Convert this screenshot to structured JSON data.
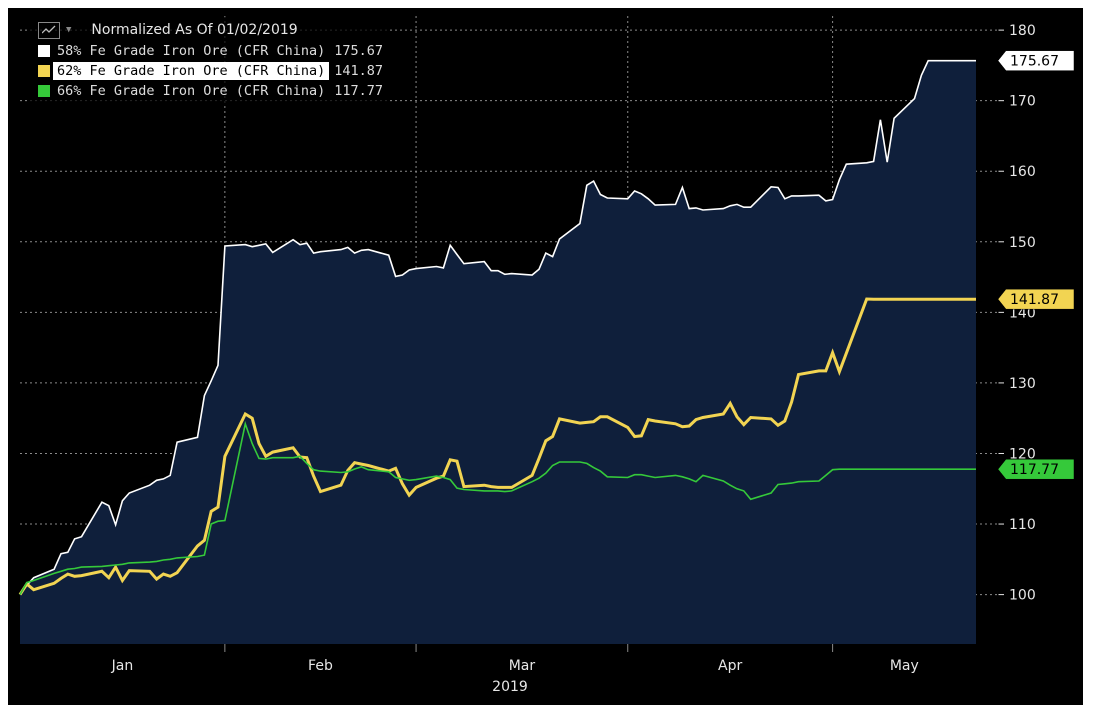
{
  "legend": {
    "title": "Normalized As Of 01/02/2019",
    "chart_icon": "line-chart-icon",
    "dropdown_icon": "caret-down-icon",
    "items": [
      {
        "label": "58% Fe Grade Iron Ore (CFR China)",
        "value": "175.67",
        "color": "#ffffff"
      },
      {
        "label": "62% Fe Grade Iron Ore (CFR China)",
        "value": "141.87",
        "color": "#f2d452"
      },
      {
        "label": "66% Fe Grade Iron Ore (CFR China)",
        "value": "117.77",
        "color": "#35c93a"
      }
    ]
  },
  "colors": {
    "background": "#000000",
    "area_fill": "#0f1f3b",
    "grid": "#8a8a8a",
    "tick_text": "#e6e6e6"
  },
  "chart_data": {
    "type": "line",
    "title": "Normalized As Of 01/02/2019",
    "xlabel": "2019",
    "ylabel": "",
    "x_tick_labels": [
      "Jan",
      "Feb",
      "Mar",
      "Apr",
      "May"
    ],
    "y_ticks": [
      100,
      110,
      120,
      130,
      140,
      150,
      160,
      170,
      180
    ],
    "ylim": [
      93,
      182
    ],
    "grid": true,
    "legend_position": "top-left",
    "x": [
      "2019-01-02",
      "2019-01-03",
      "2019-01-04",
      "2019-01-07",
      "2019-01-08",
      "2019-01-09",
      "2019-01-10",
      "2019-01-11",
      "2019-01-14",
      "2019-01-15",
      "2019-01-16",
      "2019-01-17",
      "2019-01-18",
      "2019-01-21",
      "2019-01-22",
      "2019-01-23",
      "2019-01-24",
      "2019-01-25",
      "2019-01-28",
      "2019-01-29",
      "2019-01-30",
      "2019-01-31",
      "2019-02-01",
      "2019-02-04",
      "2019-02-05",
      "2019-02-06",
      "2019-02-07",
      "2019-02-08",
      "2019-02-11",
      "2019-02-12",
      "2019-02-13",
      "2019-02-14",
      "2019-02-15",
      "2019-02-18",
      "2019-02-19",
      "2019-02-20",
      "2019-02-21",
      "2019-02-22",
      "2019-02-25",
      "2019-02-26",
      "2019-02-27",
      "2019-02-28",
      "2019-03-01",
      "2019-03-04",
      "2019-03-05",
      "2019-03-06",
      "2019-03-07",
      "2019-03-08",
      "2019-03-11",
      "2019-03-12",
      "2019-03-13",
      "2019-03-14",
      "2019-03-15",
      "2019-03-18",
      "2019-03-19",
      "2019-03-20",
      "2019-03-21",
      "2019-03-22",
      "2019-03-25",
      "2019-03-26",
      "2019-03-27",
      "2019-03-28",
      "2019-03-29",
      "2019-04-01",
      "2019-04-02",
      "2019-04-03",
      "2019-04-04",
      "2019-04-05",
      "2019-04-08",
      "2019-04-09",
      "2019-04-10",
      "2019-04-11",
      "2019-04-12",
      "2019-04-15",
      "2019-04-16",
      "2019-04-17",
      "2019-04-18",
      "2019-04-19",
      "2019-04-22",
      "2019-04-23",
      "2019-04-24",
      "2019-04-25",
      "2019-04-26",
      "2019-04-29",
      "2019-04-30",
      "2019-05-01",
      "2019-05-02",
      "2019-05-03",
      "2019-05-06",
      "2019-05-07",
      "2019-05-08",
      "2019-05-09",
      "2019-05-10",
      "2019-05-13",
      "2019-05-14",
      "2019-05-15",
      "2019-05-16",
      "2019-05-17",
      "2019-05-20",
      "2019-05-21",
      "2019-05-22"
    ],
    "series": [
      {
        "name": "58% Fe Grade Iron Ore (CFR China)",
        "color": "#ffffff",
        "last_value": 175.67,
        "values": [
          100.0,
          101.3,
          102.4,
          103.6,
          105.8,
          106.0,
          107.9,
          108.2,
          113.1,
          112.6,
          109.9,
          113.3,
          114.4,
          115.5,
          116.2,
          116.4,
          116.9,
          121.6,
          122.3,
          128.2,
          130.3,
          132.5,
          149.4,
          149.6,
          149.3,
          149.5,
          149.7,
          148.5,
          150.3,
          149.6,
          149.8,
          148.4,
          148.6,
          148.9,
          149.2,
          148.4,
          148.8,
          148.9,
          148.1,
          145.1,
          145.3,
          146.0,
          146.2,
          146.5,
          146.3,
          149.5,
          148.2,
          146.9,
          147.2,
          145.9,
          145.9,
          145.4,
          145.5,
          145.3,
          146.1,
          148.4,
          147.9,
          150.4,
          152.6,
          158.0,
          158.6,
          156.7,
          156.2,
          156.1,
          157.2,
          156.8,
          156.1,
          155.2,
          155.3,
          157.7,
          154.7,
          154.8,
          154.5,
          154.7,
          155.1,
          155.3,
          154.9,
          154.9,
          157.8,
          157.7,
          156.1,
          156.5,
          156.5,
          156.6,
          155.8,
          156.0,
          158.8,
          161.0,
          161.2,
          161.4,
          167.3,
          161.3,
          167.5,
          170.3,
          173.6,
          175.67,
          175.67,
          175.67,
          175.67,
          175.67,
          175.67
        ]
      },
      {
        "name": "62% Fe Grade Iron Ore (CFR China)",
        "color": "#f2d452",
        "last_value": 141.87,
        "values": [
          100.0,
          101.5,
          100.7,
          101.6,
          102.3,
          102.9,
          102.6,
          102.7,
          103.3,
          102.4,
          103.9,
          102.0,
          103.4,
          103.3,
          102.2,
          102.9,
          102.6,
          103.1,
          106.9,
          107.7,
          111.8,
          112.4,
          119.6,
          125.6,
          125.0,
          121.4,
          119.6,
          120.2,
          120.8,
          119.5,
          119.4,
          116.8,
          114.6,
          115.5,
          117.6,
          118.7,
          118.5,
          118.3,
          117.5,
          117.9,
          115.7,
          114.1,
          115.2,
          116.5,
          116.8,
          119.1,
          118.9,
          115.3,
          115.5,
          115.3,
          115.2,
          115.2,
          115.2,
          116.9,
          119.3,
          121.8,
          122.4,
          124.9,
          124.3,
          124.4,
          124.5,
          125.2,
          125.2,
          123.7,
          122.4,
          122.5,
          124.8,
          124.6,
          124.2,
          123.8,
          123.9,
          124.8,
          125.1,
          125.6,
          127.1,
          125.2,
          124.1,
          125.1,
          124.9,
          124.0,
          124.6,
          127.3,
          131.2,
          131.7,
          131.7,
          134.3,
          131.6,
          134.2,
          141.9,
          141.87,
          141.87,
          141.87,
          141.87,
          141.87,
          141.87,
          141.87,
          141.87,
          141.87,
          141.87,
          141.87,
          141.87
        ]
      },
      {
        "name": "66% Fe Grade Iron Ore (CFR China)",
        "color": "#35c93a",
        "last_value": 117.77,
        "values": [
          100.0,
          101.7,
          102.0,
          103.0,
          103.3,
          103.6,
          103.7,
          103.9,
          104.0,
          104.1,
          104.2,
          104.3,
          104.5,
          104.6,
          104.7,
          104.9,
          105.0,
          105.2,
          105.4,
          105.6,
          110.0,
          110.4,
          110.5,
          124.2,
          121.4,
          119.3,
          119.2,
          119.4,
          119.4,
          119.6,
          118.6,
          117.7,
          117.5,
          117.3,
          117.4,
          117.8,
          118.1,
          117.7,
          117.4,
          116.6,
          116.4,
          116.2,
          116.3,
          116.8,
          116.6,
          116.3,
          115.1,
          114.9,
          114.7,
          114.7,
          114.7,
          114.6,
          114.7,
          116.0,
          116.5,
          117.2,
          118.3,
          118.8,
          118.8,
          118.6,
          118.0,
          117.5,
          116.7,
          116.6,
          117.0,
          117.0,
          116.8,
          116.6,
          116.9,
          116.7,
          116.4,
          116.0,
          116.9,
          116.1,
          115.5,
          115.0,
          114.7,
          113.5,
          114.4,
          115.6,
          115.7,
          115.8,
          116.0,
          116.1,
          116.9,
          117.7,
          117.77,
          117.77,
          117.77,
          117.77,
          117.77,
          117.77,
          117.77,
          117.77,
          117.77,
          117.77,
          117.77,
          117.77,
          117.77,
          117.77,
          117.77
        ]
      }
    ]
  }
}
